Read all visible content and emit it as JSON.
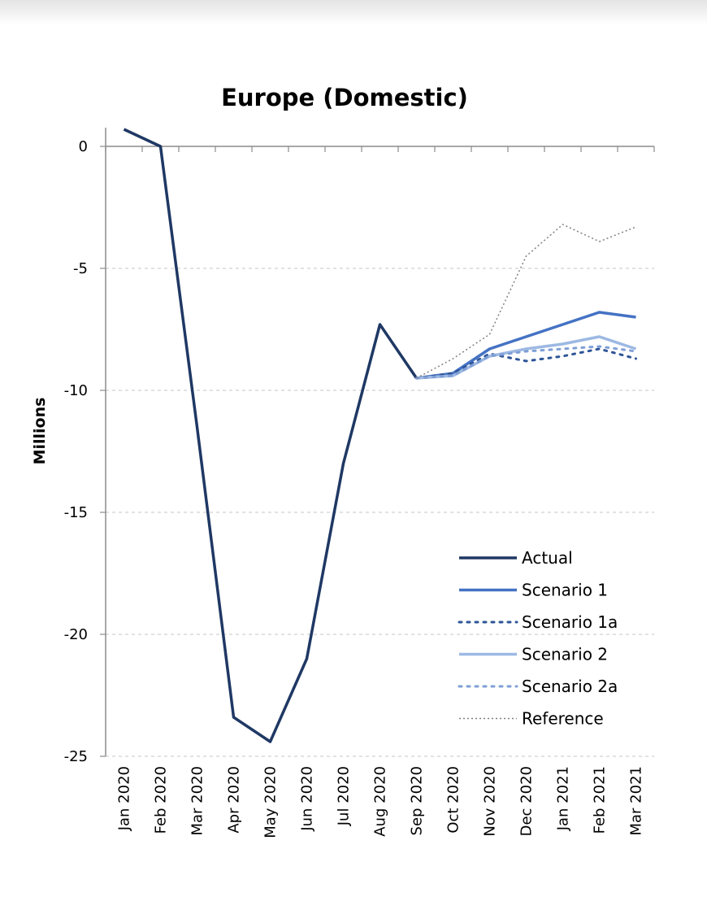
{
  "chart_data": {
    "type": "line",
    "title": "Europe (Domestic)",
    "xlabel": "",
    "ylabel": "Millions",
    "categories": [
      "Jan 2020",
      "Feb 2020",
      "Mar 2020",
      "Apr 2020",
      "May 2020",
      "Jun 2020",
      "Jul 2020",
      "Aug 2020",
      "Sep 2020",
      "Oct 2020",
      "Nov 2020",
      "Dec 2020",
      "Jan 2021",
      "Feb 2021",
      "Mar 2021"
    ],
    "ylim": [
      -25,
      0
    ],
    "yticks": [
      0,
      -5,
      -10,
      -15,
      -20,
      -25
    ],
    "grid": "horizontal dashed",
    "legend_position": "bottom-right",
    "series": [
      {
        "name": "Actual",
        "color": "#1f3864",
        "style": "solid",
        "width": 3.5,
        "values": [
          0.7,
          0.0,
          -11.5,
          -23.4,
          -24.4,
          -21.0,
          -13.0,
          -7.3,
          -9.5,
          null,
          null,
          null,
          null,
          null,
          null
        ]
      },
      {
        "name": "Scenario 1",
        "color": "#4472c4",
        "style": "solid",
        "width": 3.5,
        "values": [
          null,
          null,
          null,
          null,
          null,
          null,
          null,
          null,
          -9.5,
          -9.3,
          -8.3,
          -7.8,
          -7.3,
          -6.8,
          -7.0
        ]
      },
      {
        "name": "Scenario 1a",
        "color": "#2f5597",
        "style": "dotted",
        "width": 3,
        "values": [
          null,
          null,
          null,
          null,
          null,
          null,
          null,
          null,
          -9.5,
          -9.3,
          -8.5,
          -8.8,
          -8.6,
          -8.3,
          -8.7
        ]
      },
      {
        "name": "Scenario 2",
        "color": "#9db9e3",
        "style": "solid",
        "width": 3.5,
        "values": [
          null,
          null,
          null,
          null,
          null,
          null,
          null,
          null,
          -9.5,
          -9.4,
          -8.6,
          -8.3,
          -8.1,
          -7.8,
          -8.3
        ]
      },
      {
        "name": "Scenario 2a",
        "color": "#7f9fd6",
        "style": "dotted",
        "width": 3,
        "values": [
          null,
          null,
          null,
          null,
          null,
          null,
          null,
          null,
          -9.5,
          -9.4,
          -8.6,
          -8.4,
          -8.3,
          -8.2,
          -8.4
        ]
      },
      {
        "name": "Reference",
        "color": "#808080",
        "style": "dotted-thin",
        "width": 1.5,
        "values": [
          null,
          null,
          null,
          null,
          null,
          null,
          null,
          null,
          -9.5,
          -8.7,
          -7.7,
          -4.5,
          -3.2,
          -3.9,
          -3.3
        ]
      }
    ]
  }
}
